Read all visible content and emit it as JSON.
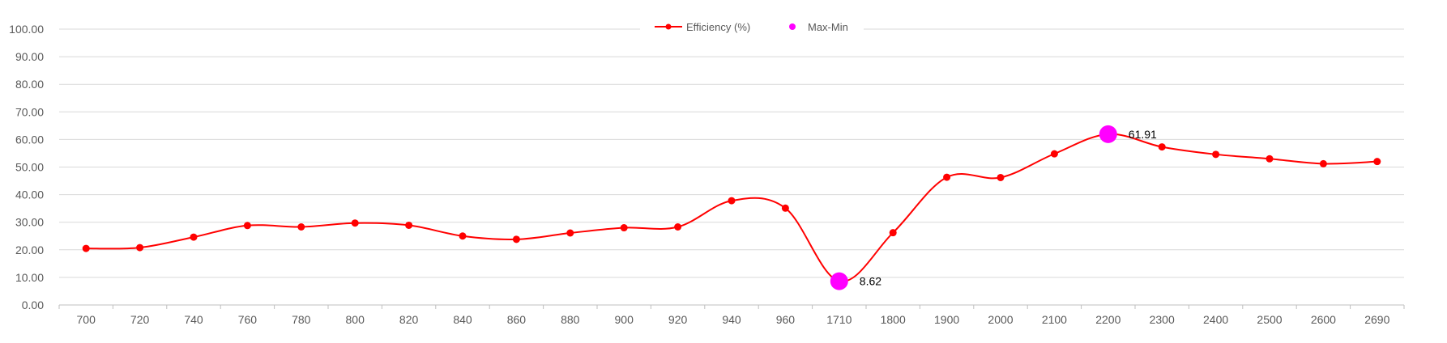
{
  "chart_data": {
    "type": "line",
    "title": "",
    "xlabel": "",
    "ylabel": "",
    "categories": [
      "700",
      "720",
      "740",
      "760",
      "780",
      "800",
      "820",
      "840",
      "860",
      "880",
      "900",
      "920",
      "940",
      "960",
      "1710",
      "1800",
      "1900",
      "2000",
      "2100",
      "2200",
      "2300",
      "2400",
      "2500",
      "2600",
      "2690"
    ],
    "ylim": [
      0,
      100
    ],
    "yticks": [
      "0.00",
      "10.00",
      "20.00",
      "30.00",
      "40.00",
      "50.00",
      "60.00",
      "70.00",
      "80.00",
      "90.00",
      "100.00"
    ],
    "grid": true,
    "legend_position": "top",
    "series": [
      {
        "name": "Efficiency (%)",
        "color": "#ff0000",
        "values": [
          20.5,
          20.8,
          24.6,
          28.8,
          28.3,
          29.7,
          28.9,
          25.0,
          23.8,
          26.1,
          28.0,
          28.3,
          37.8,
          35.1,
          8.62,
          26.2,
          46.3,
          46.2,
          54.8,
          61.91,
          57.3,
          54.6,
          53.0,
          51.2,
          52.0
        ]
      },
      {
        "name": "Max-Min",
        "color": "#ff00ff",
        "points": [
          {
            "category": "1710",
            "value": 8.62,
            "label": "8.62"
          },
          {
            "category": "2200",
            "value": 61.91,
            "label": "61.91"
          }
        ]
      }
    ]
  }
}
